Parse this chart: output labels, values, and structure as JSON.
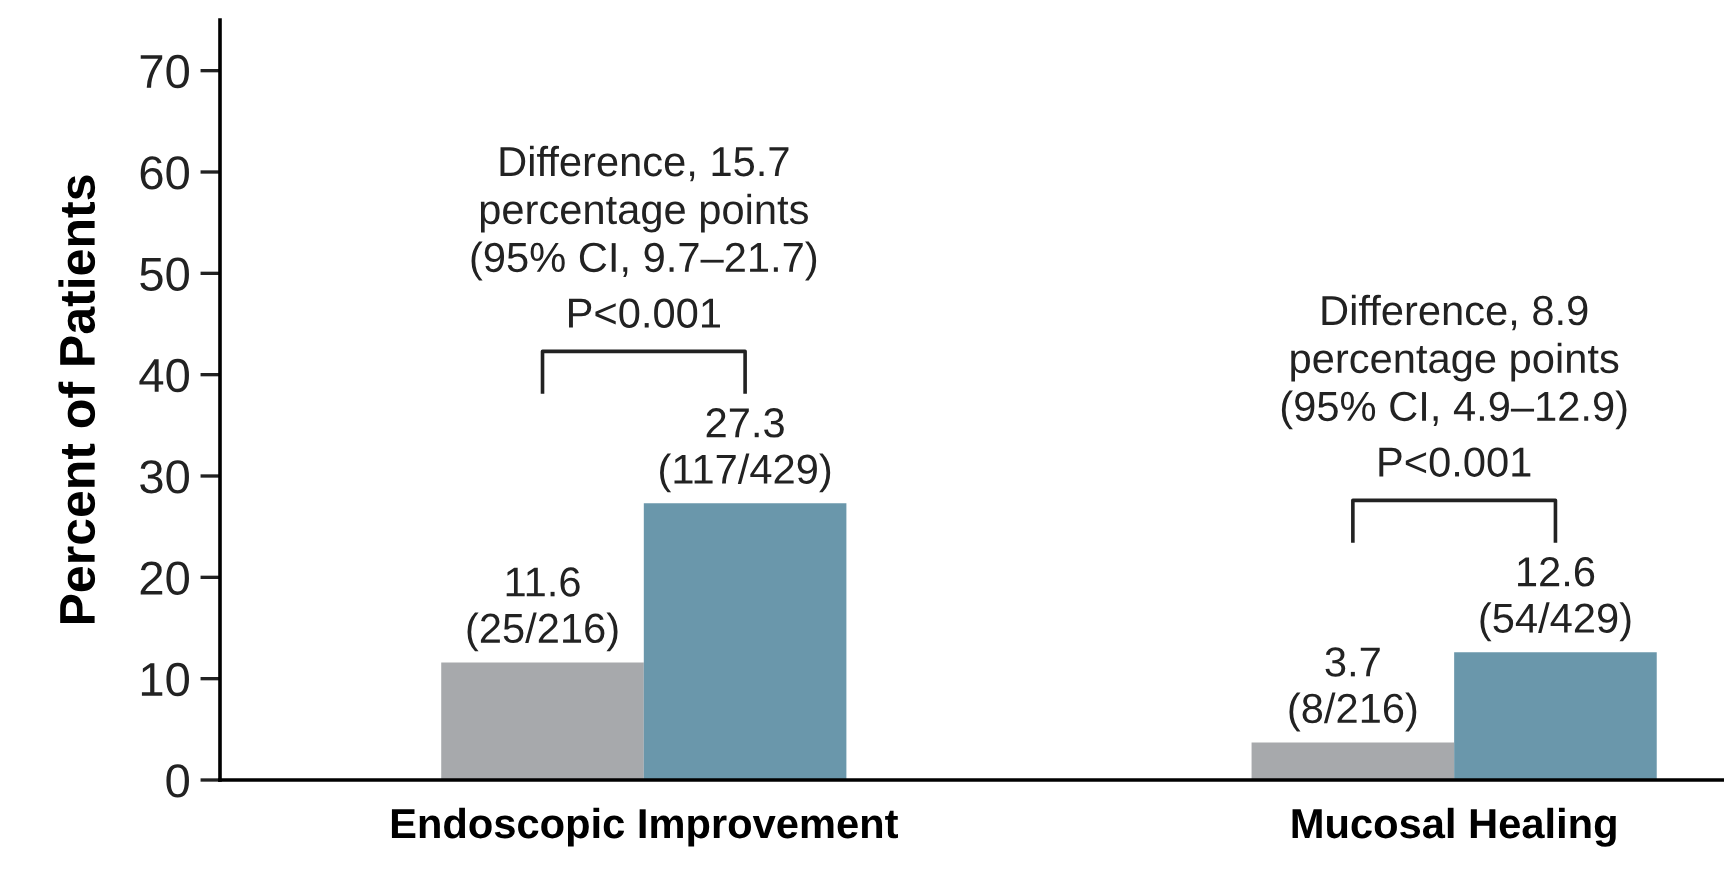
{
  "chart_data": {
    "type": "bar",
    "ylabel": "Percent of Patients",
    "categories": [
      "Endoscopic Improvement",
      "Mucosal Healing"
    ],
    "series": [
      {
        "color": "#a7a9ac",
        "values": [
          11.6,
          3.7
        ],
        "value_labels": [
          "11.6\n(25/216)",
          "3.7\n(8/216)"
        ]
      },
      {
        "color": "#6a97ab",
        "values": [
          27.3,
          12.6
        ],
        "value_labels": [
          "27.3\n(117/429)",
          "12.6\n(54/429)"
        ]
      }
    ],
    "annotations": [
      "Difference, 15.7\npercentage points\n(95% CI, 9.7–21.7)",
      "P<0.001",
      "Difference, 8.9\npercentage points\n(95% CI, 4.9–12.9)",
      "P<0.001"
    ],
    "ylim": [
      0,
      75
    ],
    "yticks": [
      0,
      10,
      20,
      30,
      40,
      50,
      60,
      70
    ],
    "grid": false,
    "legend": false
  }
}
